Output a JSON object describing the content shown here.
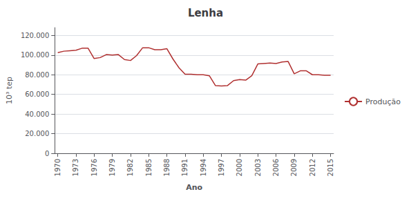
{
  "chart_data": {
    "type": "line",
    "title": "Lenha",
    "xlabel": "Ano",
    "ylabel": "10³ tep",
    "x": [
      1970,
      1971,
      1972,
      1973,
      1974,
      1975,
      1976,
      1977,
      1978,
      1979,
      1980,
      1981,
      1982,
      1983,
      1984,
      1985,
      1986,
      1987,
      1988,
      1989,
      1990,
      1991,
      1992,
      1993,
      1994,
      1995,
      1996,
      1997,
      1998,
      1999,
      2000,
      2001,
      2002,
      2003,
      2004,
      2005,
      2006,
      2007,
      2008,
      2009,
      2010,
      2011,
      2012,
      2013,
      2014,
      2015
    ],
    "series": [
      {
        "name": "Produção",
        "color": "#b03030",
        "values": [
          102500,
          104000,
          104500,
          105000,
          107000,
          107000,
          96500,
          97500,
          100500,
          100000,
          100500,
          95500,
          94500,
          99500,
          107500,
          107500,
          105500,
          105500,
          106500,
          96000,
          87000,
          80500,
          80500,
          80000,
          80000,
          79000,
          69000,
          68500,
          69000,
          74000,
          75000,
          74500,
          79000,
          91000,
          91500,
          92000,
          91500,
          93000,
          93500,
          81000,
          84000,
          84000,
          80000,
          80000,
          79500,
          79500
        ]
      }
    ],
    "xlim": [
      1969.5,
      2015.5
    ],
    "xticks": [
      1970,
      1973,
      1976,
      1979,
      1982,
      1985,
      1988,
      1991,
      1994,
      1997,
      2000,
      2003,
      2006,
      2009,
      2012,
      2015
    ],
    "ylim": [
      0,
      128000
    ],
    "yticks": [
      0,
      {
        "value": 20000,
        "label": "20.000"
      },
      {
        "value": 40000,
        "label": "40.000"
      },
      {
        "value": 60000,
        "label": "60.000"
      },
      {
        "value": 80000,
        "label": "80.000"
      },
      {
        "value": 100000,
        "label": "100.000"
      },
      {
        "value": 120000,
        "label": "120.000"
      }
    ],
    "grid": true,
    "legend": "right"
  }
}
